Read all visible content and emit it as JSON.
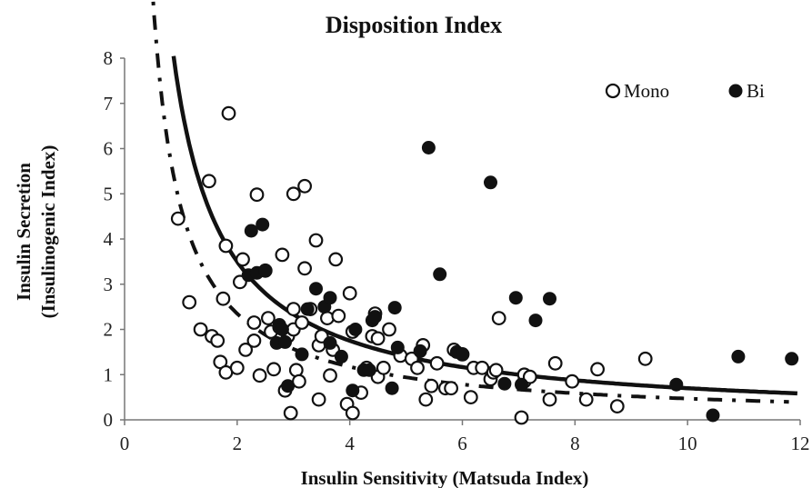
{
  "chart_data": {
    "type": "scatter",
    "title": "Disposition Index",
    "xlabel": "Insulin Sensitivity (Matsuda Index)",
    "ylabel_line1": "Insulin Secretion",
    "ylabel_line2": "(Insulinogenic Index)",
    "xlim": [
      0,
      12
    ],
    "ylim": [
      0,
      8
    ],
    "xticks": [
      0,
      2,
      4,
      6,
      8,
      10,
      12
    ],
    "yticks": [
      0,
      1,
      2,
      3,
      4,
      5,
      6,
      7,
      8
    ],
    "grid": false,
    "legend_position": "top-right",
    "series": [
      {
        "name": "Mono",
        "marker": "open-circle",
        "color": "#111111",
        "points": [
          [
            0.95,
            4.45
          ],
          [
            1.15,
            2.6
          ],
          [
            1.35,
            2.0
          ],
          [
            1.5,
            5.28
          ],
          [
            1.55,
            1.85
          ],
          [
            1.65,
            1.75
          ],
          [
            1.7,
            1.28
          ],
          [
            1.75,
            2.68
          ],
          [
            1.8,
            3.85
          ],
          [
            1.8,
            1.05
          ],
          [
            1.85,
            6.78
          ],
          [
            2.0,
            1.15
          ],
          [
            2.05,
            3.05
          ],
          [
            2.1,
            3.55
          ],
          [
            2.15,
            1.55
          ],
          [
            2.3,
            1.75
          ],
          [
            2.3,
            2.15
          ],
          [
            2.35,
            4.98
          ],
          [
            2.4,
            0.98
          ],
          [
            2.5,
            3.3
          ],
          [
            2.55,
            2.25
          ],
          [
            2.6,
            1.95
          ],
          [
            2.65,
            1.12
          ],
          [
            2.75,
            2.05
          ],
          [
            2.8,
            3.65
          ],
          [
            2.85,
            0.65
          ],
          [
            2.9,
            1.85
          ],
          [
            2.95,
            0.15
          ],
          [
            3.0,
            2.45
          ],
          [
            3.0,
            2.0
          ],
          [
            3.0,
            5.0
          ],
          [
            3.05,
            1.1
          ],
          [
            3.1,
            0.85
          ],
          [
            3.15,
            2.15
          ],
          [
            3.2,
            3.35
          ],
          [
            3.2,
            5.17
          ],
          [
            3.3,
            2.45
          ],
          [
            3.4,
            3.97
          ],
          [
            3.45,
            1.65
          ],
          [
            3.45,
            0.45
          ],
          [
            3.5,
            1.85
          ],
          [
            3.6,
            2.25
          ],
          [
            3.65,
            0.98
          ],
          [
            3.7,
            1.55
          ],
          [
            3.75,
            3.55
          ],
          [
            3.8,
            2.3
          ],
          [
            3.95,
            0.35
          ],
          [
            4.0,
            2.8
          ],
          [
            4.05,
            1.95
          ],
          [
            4.05,
            0.15
          ],
          [
            4.2,
            0.6
          ],
          [
            4.3,
            1.15
          ],
          [
            4.4,
            1.85
          ],
          [
            4.45,
            2.35
          ],
          [
            4.5,
            0.95
          ],
          [
            4.5,
            1.8
          ],
          [
            4.6,
            1.15
          ],
          [
            4.7,
            2.0
          ],
          [
            4.9,
            1.42
          ],
          [
            5.1,
            1.35
          ],
          [
            5.2,
            1.15
          ],
          [
            5.3,
            1.65
          ],
          [
            5.35,
            0.45
          ],
          [
            5.45,
            0.75
          ],
          [
            5.55,
            1.25
          ],
          [
            5.7,
            0.7
          ],
          [
            5.8,
            0.7
          ],
          [
            5.85,
            1.55
          ],
          [
            6.0,
            1.45
          ],
          [
            6.15,
            0.5
          ],
          [
            6.2,
            1.15
          ],
          [
            6.35,
            1.15
          ],
          [
            6.5,
            0.9
          ],
          [
            6.55,
            1.05
          ],
          [
            6.6,
            1.1
          ],
          [
            6.65,
            2.25
          ],
          [
            7.05,
            0.05
          ],
          [
            7.1,
            0.85
          ],
          [
            7.1,
            1.0
          ],
          [
            7.2,
            0.95
          ],
          [
            7.55,
            0.45
          ],
          [
            7.65,
            1.25
          ],
          [
            7.95,
            0.85
          ],
          [
            8.2,
            0.45
          ],
          [
            8.4,
            1.12
          ],
          [
            8.75,
            0.3
          ],
          [
            9.25,
            1.35
          ]
        ]
      },
      {
        "name": "Bi",
        "marker": "filled-circle",
        "color": "#111111",
        "points": [
          [
            2.2,
            3.2
          ],
          [
            2.25,
            4.18
          ],
          [
            2.35,
            3.25
          ],
          [
            2.45,
            4.32
          ],
          [
            2.5,
            3.3
          ],
          [
            2.7,
            1.7
          ],
          [
            2.75,
            2.1
          ],
          [
            2.8,
            2.0
          ],
          [
            2.85,
            1.72
          ],
          [
            2.9,
            0.75
          ],
          [
            3.15,
            1.45
          ],
          [
            3.25,
            2.45
          ],
          [
            3.4,
            2.9
          ],
          [
            3.55,
            2.5
          ],
          [
            3.65,
            1.7
          ],
          [
            3.65,
            2.7
          ],
          [
            3.85,
            1.4
          ],
          [
            4.05,
            0.65
          ],
          [
            4.1,
            2.0
          ],
          [
            4.25,
            1.1
          ],
          [
            4.35,
            1.1
          ],
          [
            4.4,
            2.2
          ],
          [
            4.45,
            2.28
          ],
          [
            4.75,
            0.7
          ],
          [
            4.8,
            2.48
          ],
          [
            4.85,
            1.6
          ],
          [
            5.25,
            1.52
          ],
          [
            5.4,
            6.02
          ],
          [
            5.6,
            3.22
          ],
          [
            5.9,
            1.5
          ],
          [
            6.0,
            1.45
          ],
          [
            6.5,
            5.25
          ],
          [
            6.75,
            0.8
          ],
          [
            6.95,
            2.7
          ],
          [
            7.05,
            0.78
          ],
          [
            7.3,
            2.2
          ],
          [
            7.55,
            2.68
          ],
          [
            9.8,
            0.78
          ],
          [
            10.45,
            0.1
          ],
          [
            10.9,
            1.4
          ],
          [
            11.85,
            1.35
          ]
        ]
      }
    ],
    "curves": [
      {
        "name": "",
        "style": "solid",
        "color": "#111111",
        "k": 7.0,
        "x_range": [
          0.87,
          11.95
        ]
      },
      {
        "name": "",
        "style": "dash-dot",
        "color": "#111111",
        "k": 4.7,
        "x_range": [
          0.48,
          11.8
        ]
      }
    ]
  }
}
